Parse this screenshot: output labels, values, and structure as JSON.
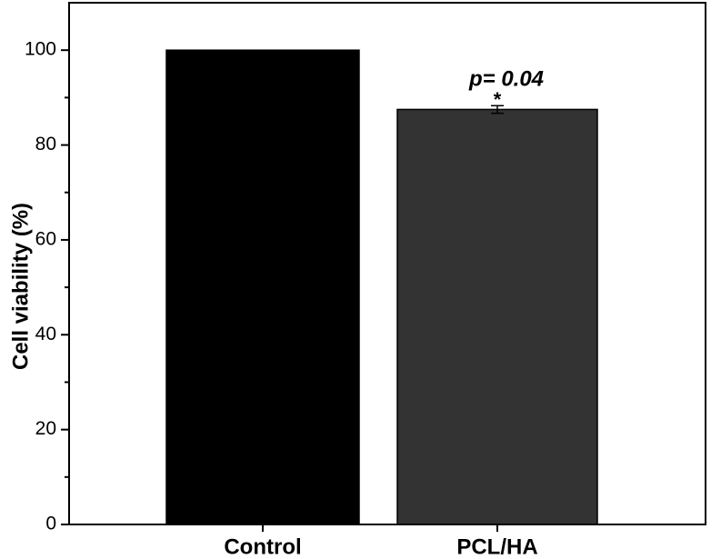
{
  "chart_data": {
    "type": "bar",
    "y_label": "Cell viability (%)",
    "categories": [
      "Control",
      "PCL/HA"
    ],
    "values": [
      100,
      87.5
    ],
    "errors": [
      null,
      0.8
    ],
    "colors": [
      "#000000",
      "#333333"
    ],
    "ylim": [
      0,
      110
    ],
    "yticks": [
      0,
      20,
      40,
      60,
      80,
      100
    ],
    "yminorticks": [
      10,
      30,
      50,
      70,
      90
    ],
    "annotations": [
      "p= 0.04",
      "*"
    ]
  }
}
